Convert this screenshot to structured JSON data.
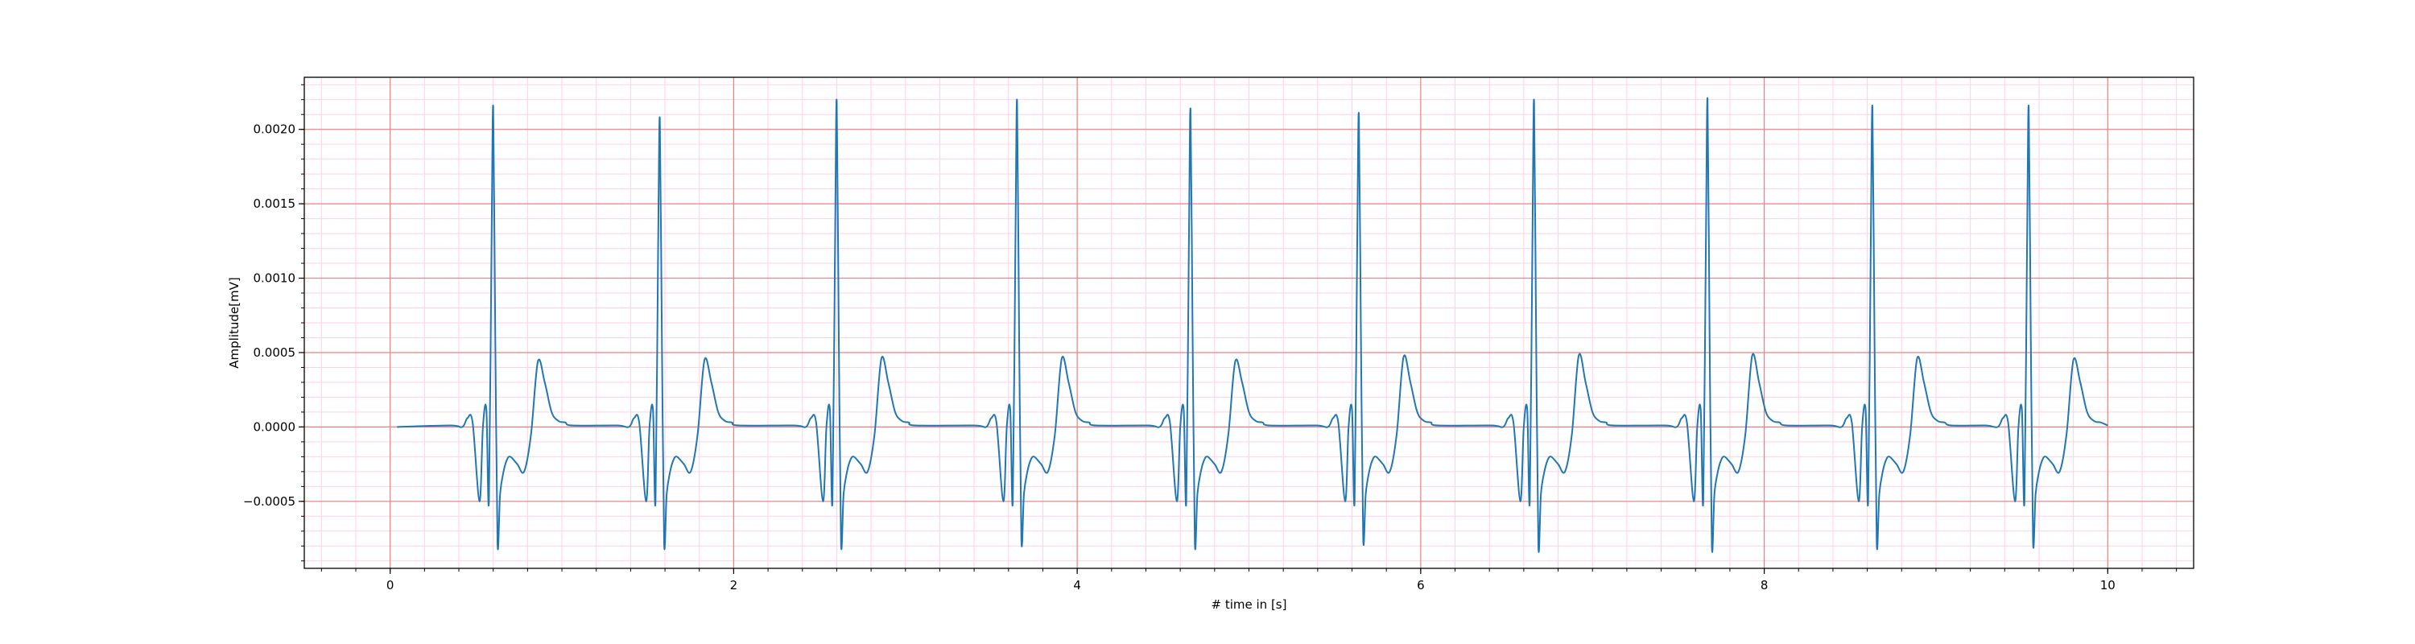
{
  "chart_data": {
    "type": "line",
    "title": "",
    "xlabel": "# time in [s]",
    "ylabel": "Amplitude[mV]",
    "xlim": [
      -0.5,
      10.5
    ],
    "ylim": [
      -0.00095,
      0.00235
    ],
    "x_ticks": [
      0,
      2,
      4,
      6,
      8,
      10
    ],
    "x_tick_labels": [
      "0",
      "2",
      "4",
      "6",
      "8",
      "10"
    ],
    "y_ticks": [
      -0.0005,
      0.0,
      0.0005,
      0.001,
      0.0015,
      0.002
    ],
    "y_tick_labels": [
      "−0.0005",
      "0.0000",
      "0.0005",
      "0.0010",
      "0.0015",
      "0.0020"
    ],
    "grid": {
      "major": true,
      "minor": true,
      "major_color": "#f08080",
      "minor_color": "#ffd0e8"
    },
    "legend": "none",
    "series": [
      {
        "color": "#1f77b4",
        "beat_template": {
          "times": [
            -0.56,
            -0.25,
            -0.18,
            -0.15,
            -0.12,
            -0.08,
            -0.06,
            -0.04,
            -0.025,
            -0.01,
            0.0,
            0.012,
            0.025,
            0.04,
            0.06,
            0.08,
            0.1,
            0.14,
            0.18,
            0.22,
            0.26,
            0.3,
            0.34,
            0.38,
            0.42,
            0.46
          ],
          "values": [
            0.0,
            1e-05,
            0.0,
            6e-05,
            3e-05,
            -0.0005,
            0.0,
            0.00012,
            -0.0005,
            0.0012,
            0.00215,
            0.0006,
            -0.00078,
            -0.00045,
            -0.0003,
            -0.00022,
            -0.0002,
            -0.00025,
            -0.0003,
            -5e-05,
            0.00044,
            0.0003,
            0.0001,
            4e-05,
            3e-05,
            1e-05
          ]
        },
        "r_peaks": [
          {
            "t": 0.6,
            "peak": 0.00215,
            "s": -0.00078,
            "t_wave": 0.00044
          },
          {
            "t": 1.57,
            "peak": 0.00207,
            "s": -0.00078,
            "t_wave": 0.00045
          },
          {
            "t": 2.6,
            "peak": 0.00219,
            "s": -0.00078,
            "t_wave": 0.00046
          },
          {
            "t": 3.65,
            "peak": 0.00219,
            "s": -0.00076,
            "t_wave": 0.00046
          },
          {
            "t": 4.66,
            "peak": 0.00213,
            "s": -0.00078,
            "t_wave": 0.00044
          },
          {
            "t": 5.64,
            "peak": 0.0021,
            "s": -0.00075,
            "t_wave": 0.00047
          },
          {
            "t": 6.66,
            "peak": 0.00219,
            "s": -0.0008,
            "t_wave": 0.00048
          },
          {
            "t": 7.67,
            "peak": 0.0022,
            "s": -0.0008,
            "t_wave": 0.00048
          },
          {
            "t": 8.63,
            "peak": 0.00215,
            "s": -0.00078,
            "t_wave": 0.00046
          },
          {
            "t": 9.54,
            "peak": 0.00215,
            "s": -0.00077,
            "t_wave": 0.00045
          }
        ],
        "x_start": 0.0,
        "x_end": 10.0
      }
    ]
  }
}
